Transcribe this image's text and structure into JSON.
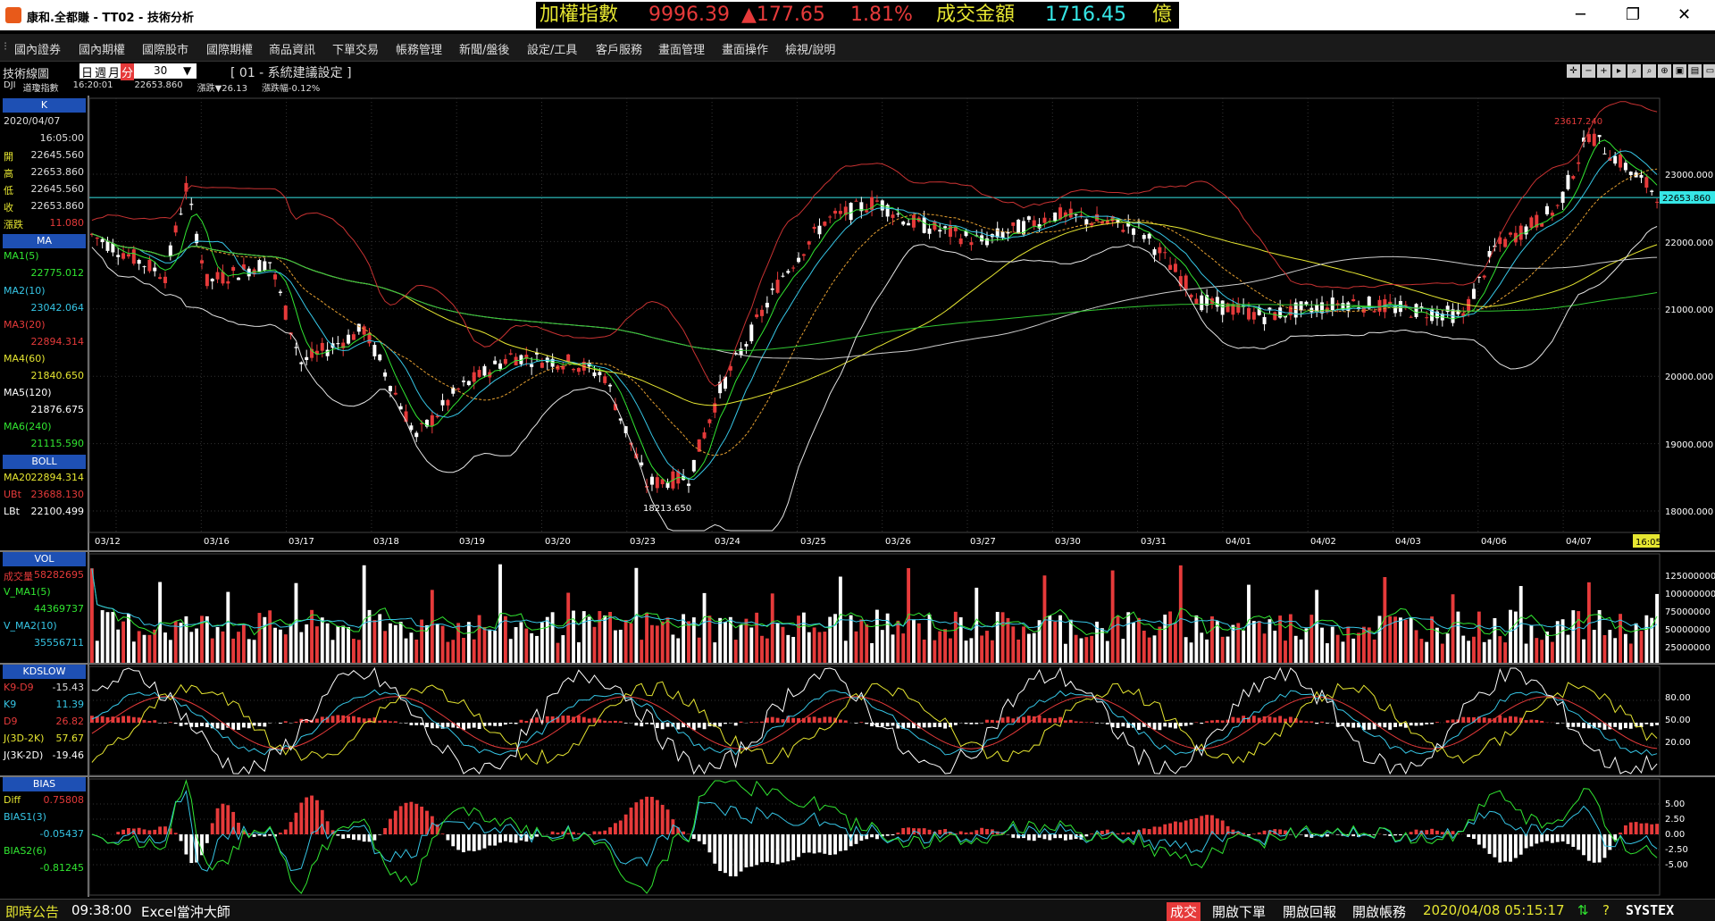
{
  "window": {
    "title": "康和.全都賺 - TT02 - 技術分析",
    "ticker": {
      "index_label": "加權指數",
      "index_value": "9996.39",
      "change": "▲177.65",
      "pct": "1.81%",
      "volume_label": "成交金額",
      "volume_value": "1716.45",
      "unit": "億"
    }
  },
  "menu": [
    "國內證券",
    "國內期權",
    "國際股市",
    "國際期權",
    "商品資訊",
    "下單交易",
    "帳務管理",
    "新聞/盤後",
    "設定/工具",
    "客戶服務",
    "畫面管理",
    "畫面操作",
    "檢視/說明"
  ],
  "chart_header": {
    "panel_title": "技術線圖",
    "period_tabs": [
      "日",
      "週",
      "月",
      "分"
    ],
    "active_tab": "分",
    "interval_value": "30",
    "setting_label": "[ 01 - 系統建議設定 ]",
    "symbol": "DJI",
    "symbol_name": "道瓊指數",
    "time": "16:20:01",
    "price": "22653.860",
    "change_label": "漲跌▼26.13",
    "change_pct_label": "漲跌幅-0.12%"
  },
  "k_panel": {
    "title": "K",
    "date": "2020/04/07",
    "time": "16:05:00",
    "rows": [
      {
        "label": "開",
        "value": "22645.560"
      },
      {
        "label": "高",
        "value": "22653.860"
      },
      {
        "label": "低",
        "value": "22645.560"
      },
      {
        "label": "收",
        "value": "22653.860"
      },
      {
        "label": "漲跌",
        "value": "11.080"
      }
    ]
  },
  "ma_panel": {
    "title": "MA",
    "rows": [
      {
        "label": "MA1(5)",
        "value": "22775.012",
        "color": "#31e631"
      },
      {
        "label": "MA2(10)",
        "value": "23042.064",
        "color": "#36c6e6"
      },
      {
        "label": "MA3(20)",
        "value": "22894.314",
        "color": "#e63a3a"
      },
      {
        "label": "MA4(60)",
        "value": "21840.650",
        "color": "#e6e631"
      },
      {
        "label": "MA5(120)",
        "value": "21876.675",
        "color": "#ffffff"
      },
      {
        "label": "MA6(240)",
        "value": "21115.590",
        "color": "#31e631"
      }
    ]
  },
  "boll_panel": {
    "title": "BOLL",
    "rows": [
      {
        "label": "MA20",
        "value": "22894.314",
        "color": "#e6e631"
      },
      {
        "label": "UBt",
        "value": "23688.130",
        "color": "#e63a3a"
      },
      {
        "label": "LBt",
        "value": "22100.499",
        "color": "#ffffff"
      }
    ]
  },
  "vol_panel": {
    "title": "VOL",
    "rows": [
      {
        "label": "成交量",
        "value": "58282695",
        "color": "#e63a3a"
      },
      {
        "label": "V_MA1(5)",
        "value": "44369737",
        "color": "#31e631"
      },
      {
        "label": "V_MA2(10)",
        "value": "35556711",
        "color": "#36c6e6"
      }
    ]
  },
  "kd_panel": {
    "title": "KDSLOW",
    "rows": [
      {
        "label": "K9-D9",
        "value": "-15.43",
        "color": "#e63a3a"
      },
      {
        "label": "K9",
        "value": "11.39",
        "color": "#36c6e6"
      },
      {
        "label": "D9",
        "value": "26.82",
        "color": "#e63a3a"
      },
      {
        "label": "J(3D-2K)",
        "value": "57.67",
        "color": "#e6e631"
      },
      {
        "label": "J(3K-2D)",
        "value": "-19.46",
        "color": "#ffffff"
      }
    ]
  },
  "bias_panel": {
    "title": "BIAS",
    "rows": [
      {
        "label": "Diff",
        "value": "0.75808",
        "color": "#e63a3a"
      },
      {
        "label": "BIAS1(3)",
        "value": "-0.05437",
        "color": "#36c6e6"
      },
      {
        "label": "BIAS2(6)",
        "value": "-0.81245",
        "color": "#31e631"
      }
    ]
  },
  "price_chart": {
    "y_ticks": [
      "23000.000",
      "22000.000",
      "21000.000",
      "20000.000",
      "19000.000",
      "18000.000"
    ],
    "y_tick_values": [
      23000,
      22000,
      21000,
      20000,
      19000,
      18000
    ],
    "x_labels": [
      "03/12",
      "03/16",
      "03/17",
      "03/18",
      "03/19",
      "03/20",
      "03/23",
      "03/24",
      "03/25",
      "03/26",
      "03/27",
      "03/30",
      "03/31",
      "04/01",
      "04/02",
      "04/03",
      "04/06",
      "04/07"
    ],
    "current_price_label": "22653.860",
    "current_time_label": "16:05",
    "high_label": "23617.240",
    "low_label": "18213.650"
  },
  "vol_chart": {
    "y_ticks": [
      "125000000",
      "100000000",
      "75000000",
      "50000000",
      "25000000"
    ]
  },
  "kd_chart": {
    "y_ticks": [
      "80.00",
      "50.00",
      "20.00"
    ]
  },
  "bias_chart": {
    "y_ticks": [
      "5.00",
      "2.50",
      "0.00",
      "-2.50",
      "-5.00"
    ]
  },
  "status": {
    "announce": "即時公告",
    "time": "09:38:00",
    "marquee": "Excel當沖大師",
    "trade_badge": "成交",
    "btn_order": "開啟下單",
    "btn_report": "開啟回報",
    "btn_account": "開啟帳務",
    "datetime": "2020/04/08 05:15:17",
    "brand": "SYSTEX"
  },
  "colors": {
    "up": "#e63a3a",
    "down": "#ffffff",
    "accent": "#1e50b4"
  }
}
